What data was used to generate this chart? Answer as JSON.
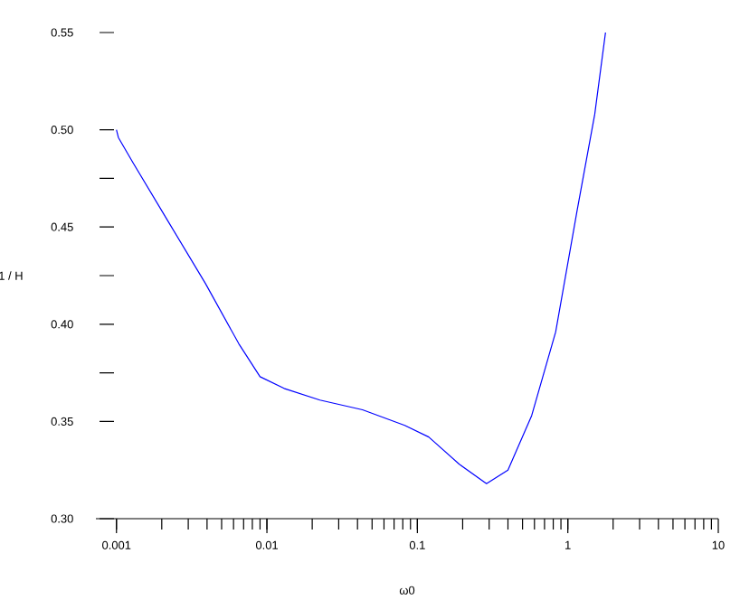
{
  "chart_data": {
    "type": "line",
    "xlabel": "ω0",
    "ylabel": "1 / H",
    "log": "x",
    "xlim": [
      0.00073,
      10
    ],
    "ylim": [
      0.3,
      0.55
    ],
    "xticks": [
      0.001,
      0.01,
      0.1,
      1,
      10
    ],
    "yticks": [
      {
        "value": 0.3,
        "label": "0.30"
      },
      0.35,
      {
        "value": 0.375,
        "label": null
      },
      {
        "value": 0.4,
        "label": "0.40"
      },
      {
        "value": 0.425,
        "label": null
      },
      0.45,
      {
        "value": 0.475,
        "label": null
      },
      {
        "value": 0.5,
        "label": "0.50"
      },
      0.55
    ],
    "marker": "none",
    "line_style": "solid",
    "series": [
      {
        "color": "#0000ff",
        "x": [
          0.001,
          0.00103,
          0.00129,
          0.00224,
          0.0039,
          0.0065,
          0.009,
          0.013,
          0.0225,
          0.0432,
          0.0824,
          0.119,
          0.19,
          0.288,
          0.4,
          0.575,
          0.83,
          1.15,
          1.51,
          1.78
        ],
        "values": [
          0.5,
          0.496,
          0.483,
          0.452,
          0.421,
          0.39,
          0.373,
          0.367,
          0.361,
          0.356,
          0.348,
          0.342,
          0.328,
          0.318,
          0.325,
          0.353,
          0.396,
          0.458,
          0.508,
          0.55
        ]
      }
    ]
  }
}
